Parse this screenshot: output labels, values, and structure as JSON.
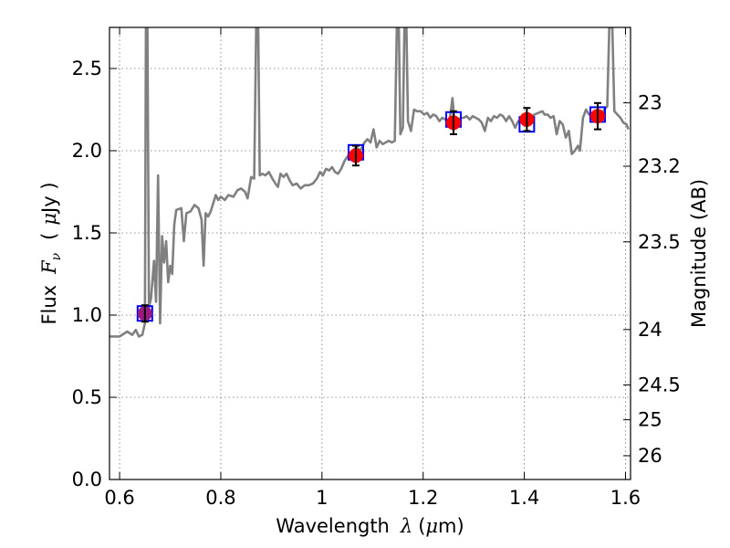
{
  "chart_data": {
    "type": "line",
    "xlabel": {
      "prefix": "Wavelength",
      "sym": "λ",
      "open": "(",
      "mu": "μ",
      "unit": "m)"
    },
    "ylabel": {
      "prefix": "Flux",
      "sym": "F",
      "sub": "ν",
      "open": "(",
      "mu": "μ",
      "unit": "Jy )"
    },
    "y2label": "Magnitude (AB)",
    "xlim": [
      0.58,
      1.61
    ],
    "ylim": [
      0.0,
      2.75
    ],
    "grid": true,
    "x_ticks": [
      0.6,
      0.8,
      1.0,
      1.2,
      1.4,
      1.6
    ],
    "x_tick_labels": [
      "0.6",
      "0.8",
      "1",
      "1.2",
      "1.4",
      "1.6"
    ],
    "y_ticks": [
      0.0,
      0.5,
      1.0,
      1.5,
      2.0,
      2.5
    ],
    "y_tick_labels": [
      "0.0",
      "0.5",
      "1.0",
      "1.5",
      "2.0",
      "2.5"
    ],
    "mag_ticks": [
      23,
      23.2,
      23.5,
      24,
      24.5,
      25,
      26
    ],
    "mag_tick_labels": [
      "23",
      "23.2",
      "23.5",
      "24",
      "24.5",
      "25",
      "26"
    ],
    "mag_zero_point_jy": 3631,
    "model": {
      "color": "#808080",
      "points": [
        [
          0.58,
          0.87
        ],
        [
          0.6,
          0.87
        ],
        [
          0.615,
          0.9
        ],
        [
          0.625,
          0.88
        ],
        [
          0.632,
          0.91
        ],
        [
          0.638,
          0.87
        ],
        [
          0.645,
          0.88
        ],
        [
          0.65,
          0.95
        ],
        [
          0.652,
          2.75
        ],
        [
          0.655,
          2.75
        ],
        [
          0.658,
          1.05
        ],
        [
          0.662,
          1.1
        ],
        [
          0.668,
          1.33
        ],
        [
          0.672,
          1.08
        ],
        [
          0.676,
          1.85
        ],
        [
          0.68,
          0.95
        ],
        [
          0.684,
          1.48
        ],
        [
          0.688,
          1.32
        ],
        [
          0.692,
          1.45
        ],
        [
          0.696,
          1.2
        ],
        [
          0.7,
          1.3
        ],
        [
          0.704,
          1.25
        ],
        [
          0.708,
          1.55
        ],
        [
          0.712,
          1.64
        ],
        [
          0.722,
          1.65
        ],
        [
          0.727,
          1.45
        ],
        [
          0.732,
          1.62
        ],
        [
          0.74,
          1.63
        ],
        [
          0.748,
          1.67
        ],
        [
          0.756,
          1.65
        ],
        [
          0.762,
          1.58
        ],
        [
          0.766,
          1.3
        ],
        [
          0.77,
          1.62
        ],
        [
          0.775,
          1.6
        ],
        [
          0.78,
          1.63
        ],
        [
          0.79,
          1.73
        ],
        [
          0.795,
          1.7
        ],
        [
          0.8,
          1.72
        ],
        [
          0.808,
          1.7
        ],
        [
          0.815,
          1.73
        ],
        [
          0.825,
          1.72
        ],
        [
          0.833,
          1.76
        ],
        [
          0.84,
          1.77
        ],
        [
          0.848,
          1.75
        ],
        [
          0.853,
          1.71
        ],
        [
          0.86,
          1.84
        ],
        [
          0.866,
          1.83
        ],
        [
          0.87,
          2.75
        ],
        [
          0.874,
          2.75
        ],
        [
          0.877,
          1.85
        ],
        [
          0.882,
          1.86
        ],
        [
          0.888,
          1.85
        ],
        [
          0.895,
          1.87
        ],
        [
          0.902,
          1.83
        ],
        [
          0.908,
          1.8
        ],
        [
          0.913,
          1.78
        ],
        [
          0.918,
          1.86
        ],
        [
          0.924,
          1.84
        ],
        [
          0.93,
          1.86
        ],
        [
          0.936,
          1.82
        ],
        [
          0.942,
          1.79
        ],
        [
          0.95,
          1.8
        ],
        [
          0.958,
          1.77
        ],
        [
          0.966,
          1.79
        ],
        [
          0.974,
          1.79
        ],
        [
          0.982,
          1.8
        ],
        [
          0.99,
          1.83
        ],
        [
          0.996,
          1.87
        ],
        [
          1.002,
          1.85
        ],
        [
          1.008,
          1.89
        ],
        [
          1.014,
          1.88
        ],
        [
          1.02,
          1.9
        ],
        [
          1.026,
          1.87
        ],
        [
          1.032,
          1.86
        ],
        [
          1.038,
          1.89
        ],
        [
          1.045,
          1.94
        ],
        [
          1.052,
          1.97
        ],
        [
          1.06,
          2.0
        ],
        [
          1.068,
          2.02
        ],
        [
          1.076,
          2.0
        ],
        [
          1.084,
          2.05
        ],
        [
          1.09,
          2.07
        ],
        [
          1.096,
          2.05
        ],
        [
          1.102,
          2.13
        ],
        [
          1.108,
          2.02
        ],
        [
          1.114,
          2.06
        ],
        [
          1.12,
          2.04
        ],
        [
          1.126,
          2.05
        ],
        [
          1.132,
          2.06
        ],
        [
          1.138,
          2.05
        ],
        [
          1.144,
          2.06
        ],
        [
          1.148,
          2.75
        ],
        [
          1.152,
          2.75
        ],
        [
          1.155,
          2.1
        ],
        [
          1.16,
          2.14
        ],
        [
          1.163,
          2.75
        ],
        [
          1.167,
          2.75
        ],
        [
          1.17,
          2.18
        ],
        [
          1.176,
          2.12
        ],
        [
          1.182,
          2.25
        ],
        [
          1.188,
          2.24
        ],
        [
          1.195,
          2.24
        ],
        [
          1.202,
          2.22
        ],
        [
          1.208,
          2.23
        ],
        [
          1.214,
          2.2
        ],
        [
          1.22,
          2.22
        ],
        [
          1.226,
          2.21
        ],
        [
          1.232,
          2.18
        ],
        [
          1.238,
          2.2
        ],
        [
          1.244,
          2.19
        ],
        [
          1.25,
          2.17
        ],
        [
          1.254,
          2.22
        ],
        [
          1.258,
          2.32
        ],
        [
          1.262,
          2.18
        ],
        [
          1.268,
          2.17
        ],
        [
          1.274,
          2.2
        ],
        [
          1.28,
          2.2
        ],
        [
          1.286,
          2.21
        ],
        [
          1.292,
          2.19
        ],
        [
          1.298,
          2.21
        ],
        [
          1.304,
          2.2
        ],
        [
          1.31,
          2.19
        ],
        [
          1.316,
          2.17
        ],
        [
          1.322,
          2.12
        ],
        [
          1.328,
          2.2
        ],
        [
          1.334,
          2.18
        ],
        [
          1.34,
          2.21
        ],
        [
          1.346,
          2.2
        ],
        [
          1.352,
          2.22
        ],
        [
          1.358,
          2.21
        ],
        [
          1.364,
          2.18
        ],
        [
          1.37,
          2.21
        ],
        [
          1.376,
          2.18
        ],
        [
          1.382,
          2.14
        ],
        [
          1.388,
          2.18
        ],
        [
          1.394,
          2.18
        ],
        [
          1.4,
          2.16
        ],
        [
          1.406,
          2.18
        ],
        [
          1.412,
          2.2
        ],
        [
          1.42,
          2.22
        ],
        [
          1.428,
          2.23
        ],
        [
          1.436,
          2.24
        ],
        [
          1.44,
          2.22
        ],
        [
          1.446,
          2.22
        ],
        [
          1.452,
          2.2
        ],
        [
          1.458,
          2.21
        ],
        [
          1.464,
          2.1
        ],
        [
          1.47,
          2.18
        ],
        [
          1.476,
          2.16
        ],
        [
          1.482,
          2.08
        ],
        [
          1.488,
          2.12
        ],
        [
          1.494,
          1.98
        ],
        [
          1.5,
          2.0
        ],
        [
          1.506,
          2.03
        ],
        [
          1.51,
          2.0
        ],
        [
          1.516,
          2.2
        ],
        [
          1.522,
          2.25
        ],
        [
          1.528,
          2.22
        ],
        [
          1.534,
          2.23
        ],
        [
          1.54,
          2.2
        ],
        [
          1.546,
          2.21
        ],
        [
          1.552,
          2.22
        ],
        [
          1.558,
          2.25
        ],
        [
          1.564,
          2.27
        ],
        [
          1.568,
          2.75
        ],
        [
          1.574,
          2.75
        ],
        [
          1.578,
          2.24
        ],
        [
          1.584,
          2.22
        ],
        [
          1.59,
          2.2
        ],
        [
          1.596,
          2.17
        ],
        [
          1.602,
          2.16
        ],
        [
          1.606,
          2.13
        ]
      ]
    },
    "photometry": {
      "point_color": "#ff0000",
      "first_point_color": "#9a1a80",
      "model_box_color": "#0000ff",
      "points": [
        {
          "x": 0.65,
          "y": 1.01,
          "err": 0.05,
          "model": 1.01
        },
        {
          "x": 1.067,
          "y": 1.97,
          "err": 0.06,
          "model": 1.99
        },
        {
          "x": 1.26,
          "y": 2.17,
          "err": 0.07,
          "model": 2.19
        },
        {
          "x": 1.405,
          "y": 2.19,
          "err": 0.07,
          "model": 2.16
        },
        {
          "x": 1.545,
          "y": 2.21,
          "err": 0.08,
          "model": 2.22
        }
      ]
    }
  }
}
